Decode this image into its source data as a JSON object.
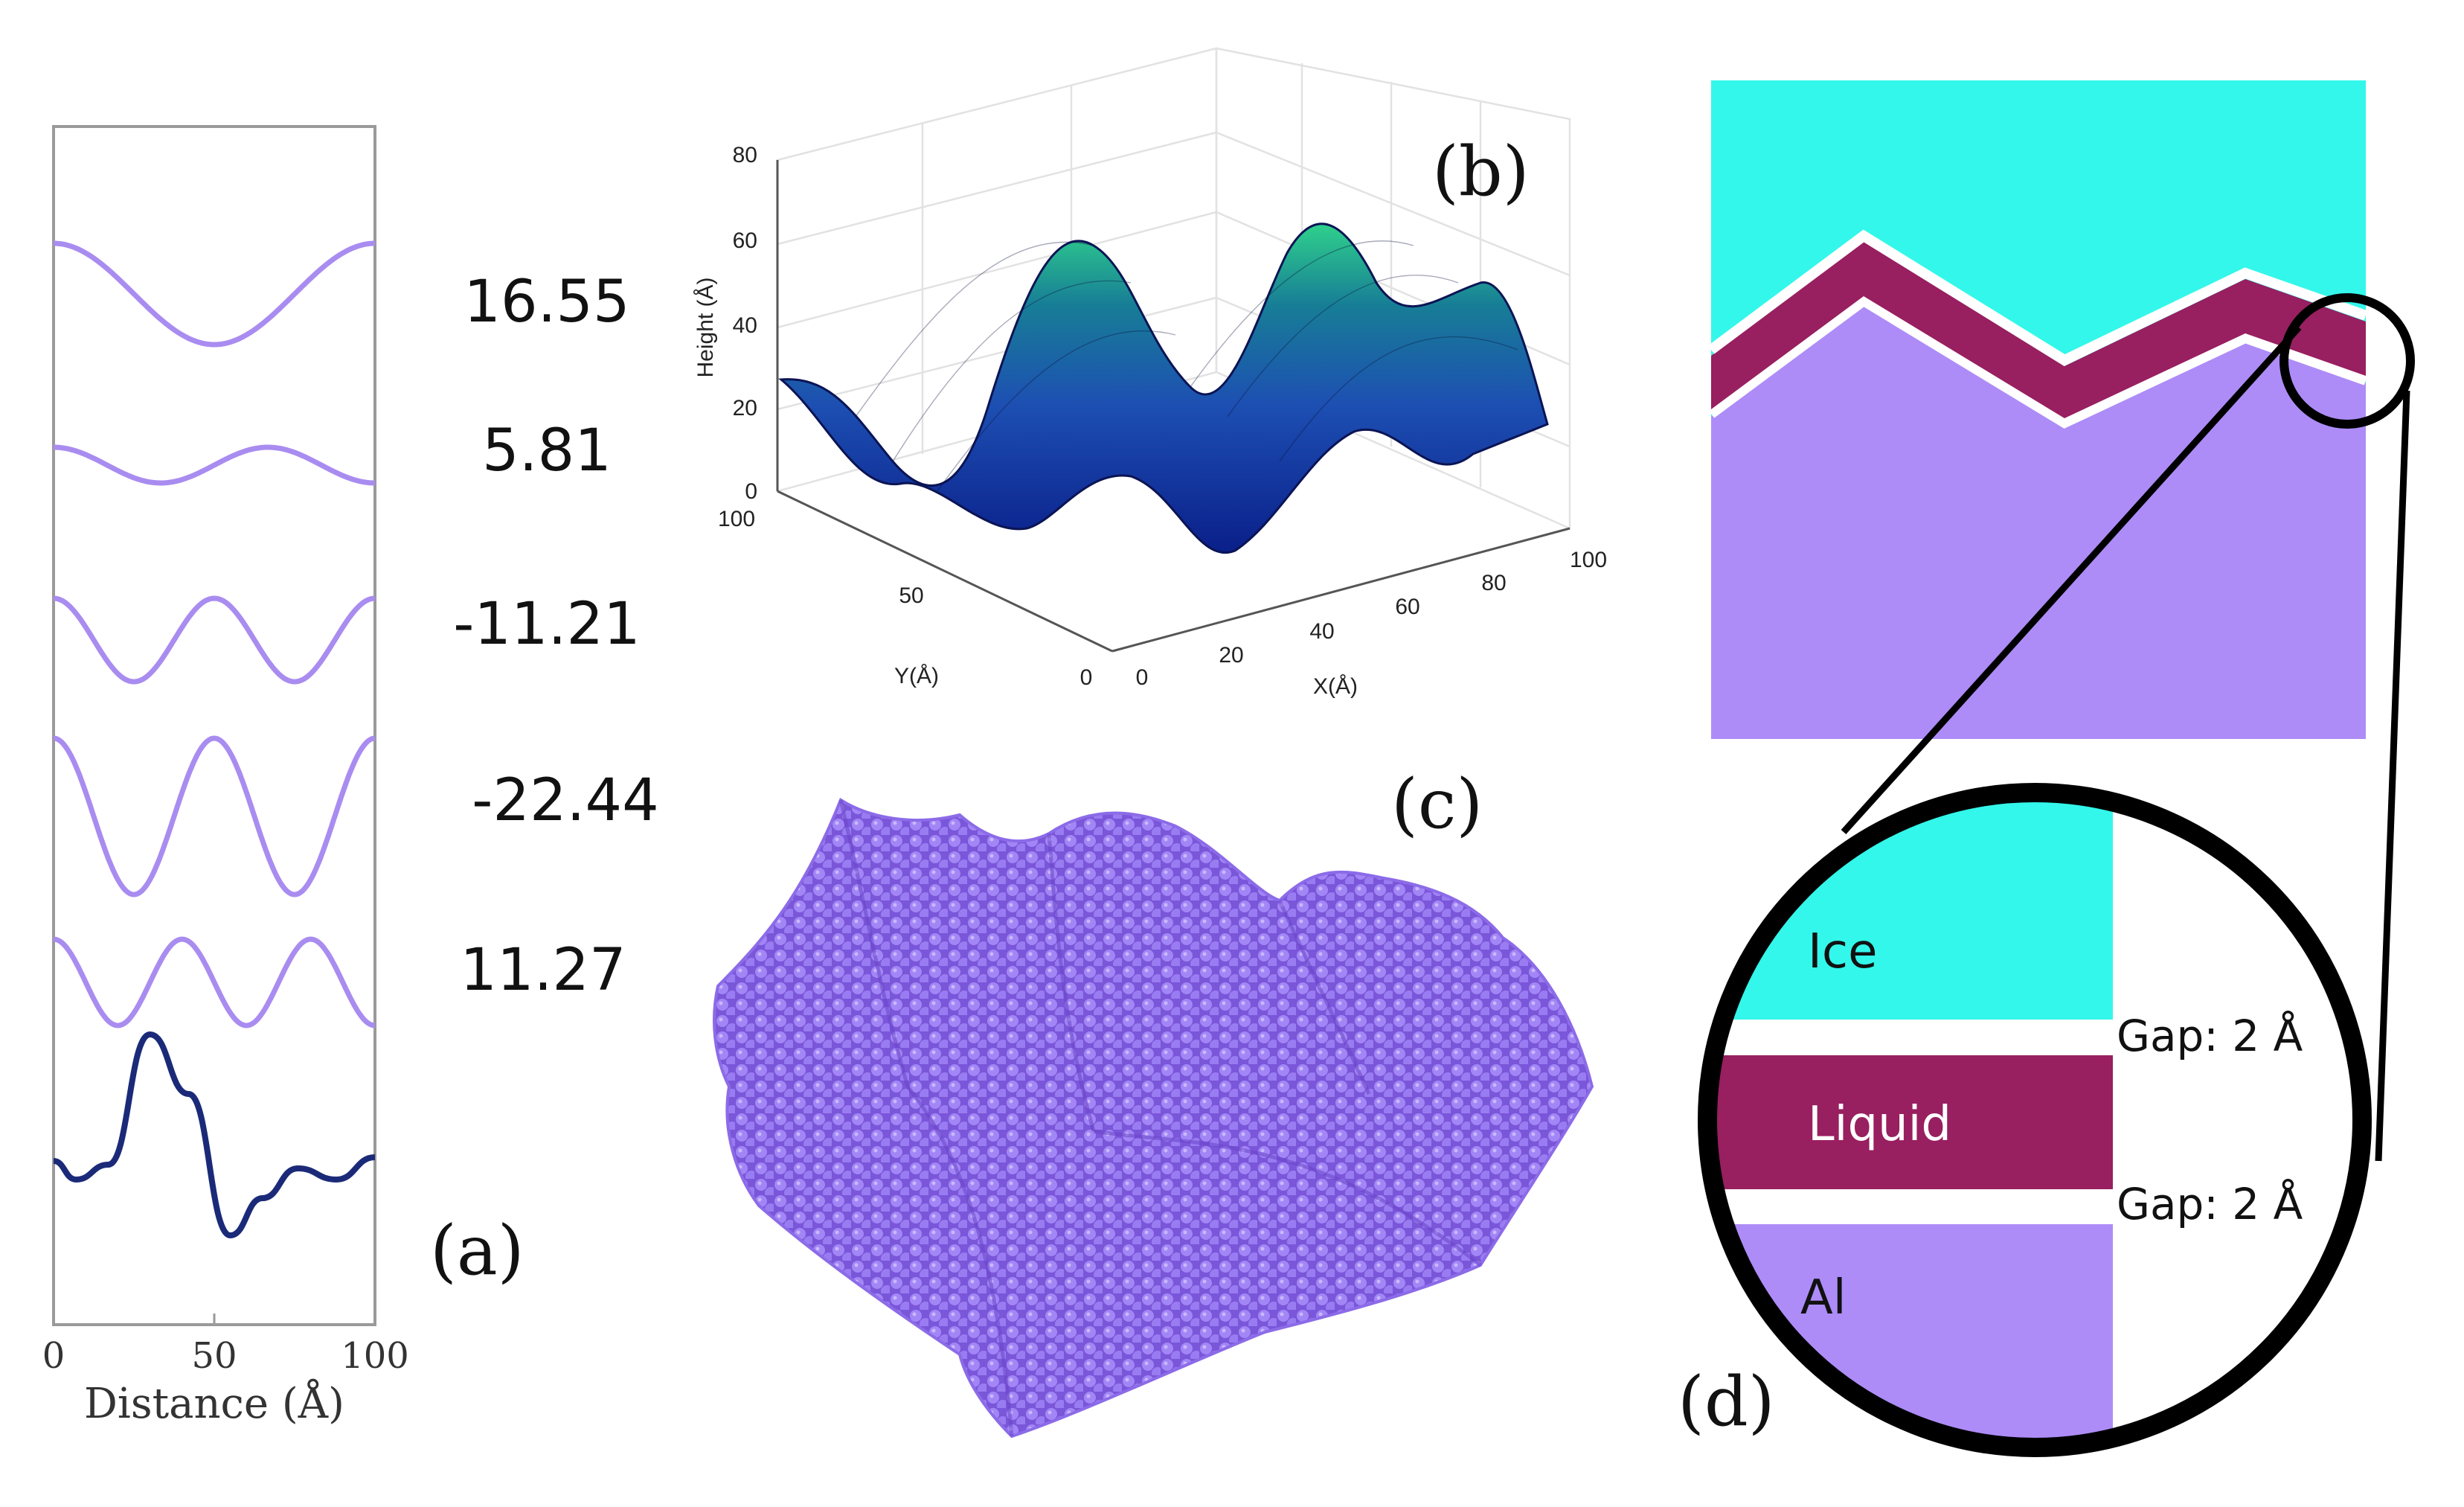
{
  "panel_a": {
    "label": "(a)",
    "xlabel": "Distance (Å)",
    "xticks": [
      "0",
      "50",
      "100"
    ],
    "amplitudes": [
      "16.55",
      "5.81",
      "-11.21",
      "-22.44",
      "11.27"
    ],
    "colors": {
      "component": "#a98cf0",
      "sum": "#1b2a78"
    }
  },
  "panel_b": {
    "label": "(b)",
    "zlabel": "Height (Å)",
    "xlabel": "X(Å)",
    "ylabel": "Y(Å)",
    "zticks": [
      "0",
      "20",
      "40",
      "60",
      "80"
    ],
    "xticks": [
      "0",
      "20",
      "40",
      "60",
      "80",
      "100"
    ],
    "yticks": [
      "0",
      "50",
      "100"
    ]
  },
  "panel_c": {
    "label": "(c)",
    "color": "#9b78f0"
  },
  "panel_d": {
    "label": "(d)",
    "colors": {
      "ice": "#33f7ea",
      "liquid": "#981f60",
      "al": "#ad8cf8"
    },
    "layers": {
      "ice": "Ice",
      "liquid": "Liquid",
      "al": "Al"
    },
    "gap_top": "Gap: 2 Å",
    "gap_bottom": "Gap: 2 Å"
  }
}
